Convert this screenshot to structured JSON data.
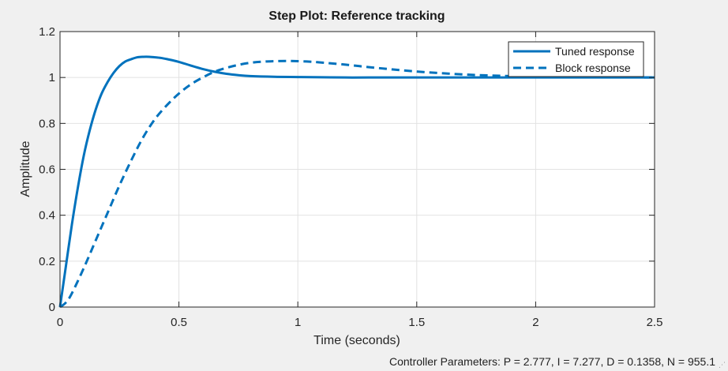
{
  "chart_data": {
    "type": "line",
    "title": "Step Plot: Reference tracking",
    "xlabel": "Time (seconds)",
    "ylabel": "Amplitude",
    "xlim": [
      0,
      2.5
    ],
    "ylim": [
      0,
      1.2
    ],
    "x_ticks": [
      0,
      0.5,
      1,
      1.5,
      2,
      2.5
    ],
    "x_tick_labels": [
      "0",
      "0.5",
      "1",
      "1.5",
      "2",
      "2.5"
    ],
    "y_ticks": [
      0,
      0.2,
      0.4,
      0.6,
      0.8,
      1,
      1.2
    ],
    "y_tick_labels": [
      "0",
      "0.2",
      "0.4",
      "0.6",
      "0.8",
      "1",
      "1.2"
    ],
    "grid": true,
    "legend_position": "top-right",
    "series": [
      {
        "name": "Tuned response",
        "style": "solid",
        "color": "#0072bd",
        "x": [
          0,
          0.025,
          0.05,
          0.075,
          0.1,
          0.125,
          0.15,
          0.175,
          0.2,
          0.225,
          0.25,
          0.275,
          0.3,
          0.325,
          0.35,
          0.375,
          0.4,
          0.425,
          0.45,
          0.5,
          0.55,
          0.6,
          0.65,
          0.7,
          0.75,
          0.8,
          0.9,
          1.0,
          1.1,
          1.2,
          1.3,
          1.5,
          1.7,
          2.0,
          2.5
        ],
        "y": [
          0,
          0.18,
          0.36,
          0.52,
          0.66,
          0.77,
          0.86,
          0.93,
          0.98,
          1.02,
          1.05,
          1.07,
          1.08,
          1.088,
          1.09,
          1.09,
          1.088,
          1.085,
          1.08,
          1.068,
          1.052,
          1.037,
          1.025,
          1.016,
          1.01,
          1.006,
          1.003,
          1.002,
          1.001,
          1.0,
          1.0,
          1.0,
          1.0,
          1.0,
          1.0
        ]
      },
      {
        "name": "Block response",
        "style": "dashed",
        "color": "#0072bd",
        "x": [
          0,
          0.025,
          0.05,
          0.1,
          0.15,
          0.2,
          0.25,
          0.3,
          0.35,
          0.4,
          0.45,
          0.5,
          0.55,
          0.6,
          0.65,
          0.7,
          0.75,
          0.8,
          0.85,
          0.9,
          0.95,
          1.0,
          1.05,
          1.1,
          1.2,
          1.3,
          1.4,
          1.5,
          1.6,
          1.7,
          1.8,
          1.9,
          2.0,
          2.2,
          2.5
        ],
        "y": [
          0,
          0.02,
          0.06,
          0.17,
          0.29,
          0.41,
          0.53,
          0.64,
          0.74,
          0.82,
          0.88,
          0.93,
          0.97,
          1.0,
          1.025,
          1.042,
          1.055,
          1.064,
          1.069,
          1.071,
          1.072,
          1.071,
          1.069,
          1.065,
          1.056,
          1.045,
          1.035,
          1.026,
          1.019,
          1.013,
          1.009,
          1.006,
          1.004,
          1.002,
          1.0
        ]
      }
    ]
  },
  "status": {
    "controller_parameters": "Controller Parameters: P = 2.777, I = 7.277, D = 0.1358, N = 955.1"
  },
  "colors": {
    "figure_background": "#f0f0f0",
    "axes_background": "#ffffff",
    "grid": "#e2e2e2",
    "line": "#0072bd"
  }
}
